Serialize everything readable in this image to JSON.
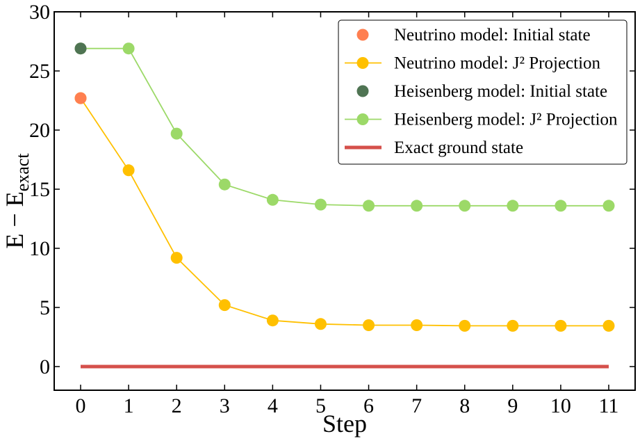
{
  "chart_data": {
    "type": "line",
    "title": "",
    "xlabel": "Step",
    "ylabel": {
      "main": "E − E",
      "sub": "exact"
    },
    "xlim": [
      -0.55,
      11.55
    ],
    "ylim": [
      -2,
      30
    ],
    "x": [
      0,
      1,
      2,
      3,
      4,
      5,
      6,
      7,
      8,
      9,
      10,
      11
    ],
    "x_tick_labels": [
      "0",
      "1",
      "2",
      "3",
      "4",
      "5",
      "6",
      "7",
      "8",
      "9",
      "10",
      "11"
    ],
    "y_ticks": [
      0,
      5,
      10,
      15,
      20,
      25,
      30
    ],
    "y_tick_labels": [
      "0",
      "5",
      "10",
      "15",
      "20",
      "25",
      "30"
    ],
    "legend_position": "top-right",
    "series": [
      {
        "name": "Neutrino model: Initial state",
        "kind": "marker",
        "color": "#ff7f50",
        "x": [
          0
        ],
        "values": [
          22.7
        ]
      },
      {
        "name": "Neutrino model: J² Projection",
        "kind": "line-marker",
        "color": "#ffc000",
        "x": [
          0,
          1,
          2,
          3,
          4,
          5,
          6,
          7,
          8,
          9,
          10,
          11
        ],
        "values": [
          22.7,
          16.6,
          9.2,
          5.2,
          3.9,
          3.6,
          3.5,
          3.5,
          3.45,
          3.45,
          3.45,
          3.45
        ]
      },
      {
        "name": "Heisenberg model: Initial state",
        "kind": "marker",
        "color": "#4f7453",
        "x": [
          0
        ],
        "values": [
          26.9
        ]
      },
      {
        "name": "Heisenberg model: J² Projection",
        "kind": "line-marker",
        "color": "#9cd968",
        "x": [
          0,
          1,
          2,
          3,
          4,
          5,
          6,
          7,
          8,
          9,
          10,
          11
        ],
        "values": [
          26.9,
          26.9,
          19.7,
          15.4,
          14.1,
          13.7,
          13.6,
          13.6,
          13.6,
          13.6,
          13.6,
          13.6
        ]
      },
      {
        "name": "Exact ground state",
        "kind": "line",
        "color": "#d5504b",
        "x": [
          0,
          11
        ],
        "values": [
          0,
          0
        ]
      }
    ]
  }
}
